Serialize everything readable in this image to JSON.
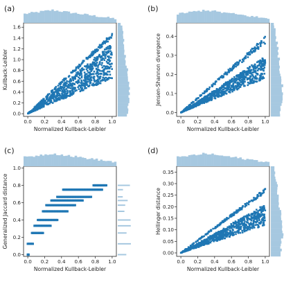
{
  "chart_data": [
    {
      "panel": "(a)",
      "type": "scatter",
      "xlabel": "Normalized Kullback-Leibler",
      "ylabel": "Kullback-Leibler",
      "xlim": [
        -0.05,
        1.05
      ],
      "ylim": [
        -0.05,
        1.68
      ],
      "xticks": [
        "0.0",
        "0.2",
        "0.4",
        "0.6",
        "0.8",
        "1.0"
      ],
      "yticks": [
        "0.0",
        "0.2",
        "0.4",
        "0.6",
        "0.8",
        "1.0",
        "1.2",
        "1.4",
        "1.6"
      ],
      "marginal_x": true,
      "marginal_y": true,
      "color": "#1f77b4",
      "marginal_color": "#a6c8e0",
      "envelope": {
        "upper_slope": 1.6,
        "lower_slope": 0.65,
        "band_slopes": [
          1.45,
          1.25
        ]
      }
    },
    {
      "panel": "(b)",
      "type": "scatter",
      "xlabel": "Normalized Kullback-Leibler",
      "ylabel": "Jensen-Shannon divergence",
      "xlim": [
        -0.05,
        1.05
      ],
      "ylim": [
        -0.02,
        0.47
      ],
      "xticks": [
        "0.0",
        "0.2",
        "0.4",
        "0.6",
        "0.8",
        "1.0"
      ],
      "yticks": [
        "0.0",
        "0.1",
        "0.2",
        "0.3",
        "0.4"
      ],
      "marginal_x": true,
      "marginal_y": true,
      "color": "#1f77b4",
      "marginal_color": "#a6c8e0",
      "envelope": {
        "upper_slope": 0.44,
        "lower_slope": 0.18,
        "band_slopes": [
          0.38,
          0.28
        ]
      }
    },
    {
      "panel": "(c)",
      "type": "scatter",
      "xlabel": "Normalized Kullback-Leibler",
      "ylabel": "Generalized Jaccard distance",
      "xlim": [
        -0.05,
        1.05
      ],
      "ylim": [
        -0.02,
        1.02
      ],
      "xticks": [
        "0.0",
        "0.2",
        "0.4",
        "0.6",
        "0.8",
        "1.0"
      ],
      "yticks": [
        "0.0",
        "0.2",
        "0.4",
        "0.6",
        "0.8",
        "1.0"
      ],
      "marginal_x": true,
      "marginal_y": true,
      "color": "#1f77b4",
      "marginal_color": "#a6c8e0",
      "levels": [
        {
          "y": 0.0,
          "x_start": 0.0,
          "x_end": 0.01
        },
        {
          "y": 0.125,
          "x_start": 0.0,
          "x_end": 0.06
        },
        {
          "y": 0.25,
          "x_start": 0.05,
          "x_end": 0.18
        },
        {
          "y": 0.333,
          "x_start": 0.08,
          "x_end": 0.27
        },
        {
          "y": 0.4,
          "x_start": 0.12,
          "x_end": 0.35
        },
        {
          "y": 0.5,
          "x_start": 0.18,
          "x_end": 0.47
        },
        {
          "y": 0.571,
          "x_start": 0.22,
          "x_end": 0.56
        },
        {
          "y": 0.625,
          "x_start": 0.28,
          "x_end": 0.65
        },
        {
          "y": 0.667,
          "x_start": 0.35,
          "x_end": 0.75
        },
        {
          "y": 0.75,
          "x_start": 0.42,
          "x_end": 0.88
        },
        {
          "y": 0.8,
          "x_start": 0.78,
          "x_end": 0.93
        }
      ]
    },
    {
      "panel": "(d)",
      "type": "scatter",
      "xlabel": "Normalized Kullback-Leibler",
      "ylabel": "Hellinger distance",
      "xlim": [
        -0.05,
        1.05
      ],
      "ylim": [
        -0.015,
        0.375
      ],
      "xticks": [
        "0.0",
        "0.2",
        "0.4",
        "0.6",
        "0.8",
        "1.0"
      ],
      "yticks": [
        "0.00",
        "0.05",
        "0.10",
        "0.15",
        "0.20",
        "0.25",
        "0.30",
        "0.35"
      ],
      "marginal_x": true,
      "marginal_y": true,
      "color": "#1f77b4",
      "marginal_color": "#a6c8e0",
      "envelope": {
        "upper_slope": 0.3,
        "lower_slope": 0.12,
        "band_slopes": [
          0.27,
          0.2
        ]
      }
    }
  ]
}
